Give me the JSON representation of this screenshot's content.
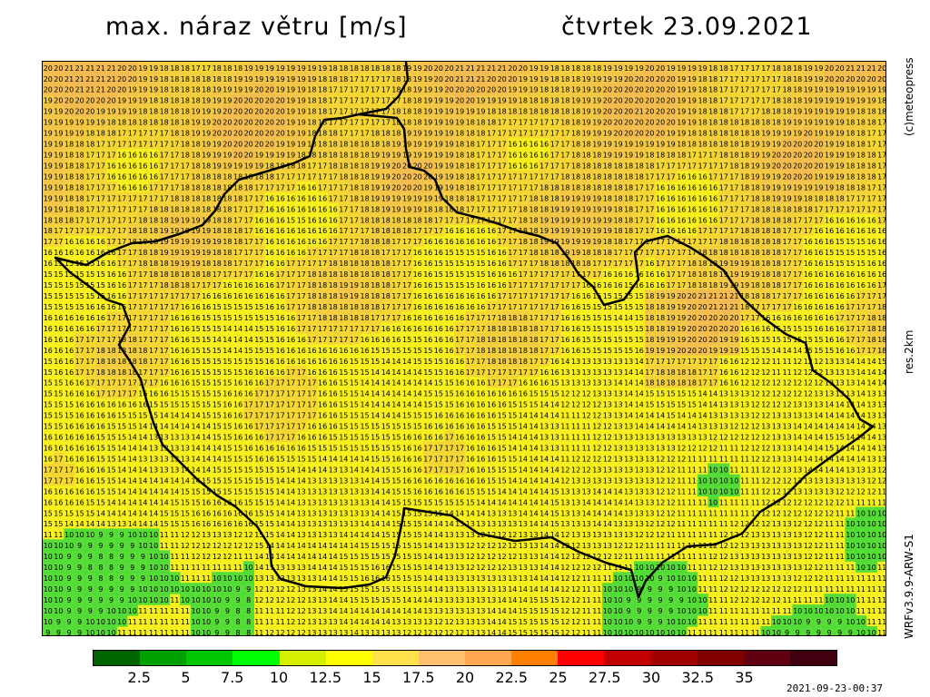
{
  "header": {
    "title": "max. náraz větru [m/s]",
    "date": "čtvrtek 23.09.2021"
  },
  "side_labels": {
    "copyright": "(c)meteopress",
    "resolution": "res.2km",
    "model": "WRFv3.9.9-ARW-S1"
  },
  "footer": {
    "timestamp": "2021-09-23-00:37"
  },
  "legend": {
    "colors": [
      "#006400",
      "#00a000",
      "#00c800",
      "#00ff00",
      "#d4f000",
      "#ffff00",
      "#ffe14b",
      "#ffc070",
      "#ffa850",
      "#ff7f00",
      "#ff0000",
      "#c00000",
      "#a00000",
      "#800000",
      "#600010",
      "#400010"
    ],
    "labels": [
      "2.5",
      "5",
      "7.5",
      "10",
      "12.5",
      "15",
      "17.5",
      "20",
      "22.5",
      "25",
      "27.5",
      "30",
      "32.5",
      "35"
    ]
  },
  "map": {
    "grid_rows": 53,
    "grid_cols": 80,
    "base_color": "#f7ef1e",
    "warm_color": "#f2b35a",
    "green_color": "#3cd83c"
  }
}
